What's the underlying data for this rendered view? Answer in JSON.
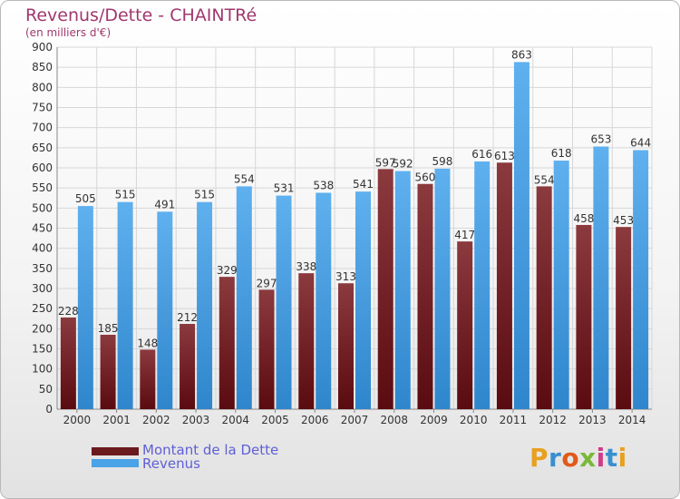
{
  "header": {
    "title": "Revenus/Dette - CHAINTRé",
    "subtitle": "(en milliers d'€)"
  },
  "legend": {
    "items": [
      {
        "label": "Montant de la Dette",
        "color": "#6b1a1e"
      },
      {
        "label": "Revenus",
        "color": "#4aa3e6"
      }
    ]
  },
  "logo": {
    "text": "Proxiti"
  },
  "colors": {
    "debt_top": "#8b3a3e",
    "debt_bottom": "#5a0b10",
    "revenue_top": "#5fb0ee",
    "revenue_bottom": "#2f86cc",
    "grid": "#d7d7d7",
    "text": "#333333"
  },
  "chart_data": {
    "type": "bar",
    "categories": [
      "2000",
      "2001",
      "2002",
      "2003",
      "2004",
      "2005",
      "2006",
      "2007",
      "2008",
      "2009",
      "2010",
      "2011",
      "2012",
      "2013",
      "2014"
    ],
    "series": [
      {
        "name": "Montant de la Dette",
        "values": [
          228,
          185,
          148,
          212,
          329,
          297,
          338,
          313,
          597,
          560,
          417,
          613,
          554,
          458,
          453
        ]
      },
      {
        "name": "Revenus",
        "values": [
          505,
          515,
          491,
          515,
          554,
          531,
          538,
          541,
          592,
          598,
          616,
          863,
          618,
          653,
          644
        ]
      }
    ],
    "ylim": [
      0,
      900
    ],
    "yticks": [
      0,
      50,
      100,
      150,
      200,
      250,
      300,
      350,
      400,
      450,
      500,
      550,
      600,
      650,
      700,
      750,
      800,
      850,
      900
    ],
    "grid": true,
    "legend_position": "bottom-left"
  }
}
